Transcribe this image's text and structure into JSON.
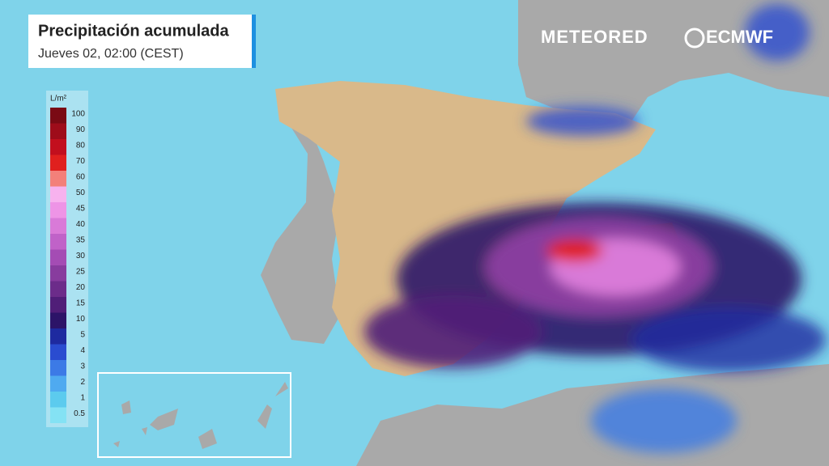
{
  "header": {
    "title": "Precipitación acumulada",
    "subtitle": "Jueves 02, 02:00 (CEST)"
  },
  "logos": {
    "brand": "METEORED",
    "model": "ECMWF"
  },
  "legend": {
    "unit": "L/m²",
    "levels": [
      {
        "value": 100,
        "color": "#7a0a14"
      },
      {
        "value": 90,
        "color": "#9e0c1a"
      },
      {
        "value": 80,
        "color": "#c20f1e"
      },
      {
        "value": 70,
        "color": "#e0201e"
      },
      {
        "value": 60,
        "color": "#f3807a"
      },
      {
        "value": 50,
        "color": "#f7b2ee"
      },
      {
        "value": 45,
        "color": "#ee94e6"
      },
      {
        "value": 40,
        "color": "#d97ad8"
      },
      {
        "value": 35,
        "color": "#c062c8"
      },
      {
        "value": 30,
        "color": "#a44cb4"
      },
      {
        "value": 25,
        "color": "#883c9e"
      },
      {
        "value": 20,
        "color": "#6c2c8a"
      },
      {
        "value": 15,
        "color": "#501e78"
      },
      {
        "value": 10,
        "color": "#2c1468"
      },
      {
        "value": 5,
        "color": "#1e2aa0"
      },
      {
        "value": 4,
        "color": "#2a4cd0"
      },
      {
        "value": 3,
        "color": "#3c7ae6"
      },
      {
        "value": 2,
        "color": "#4faaf0"
      },
      {
        "value": 1,
        "color": "#5ccbee"
      },
      {
        "value": 0.5,
        "color": "#84e2f4"
      }
    ]
  }
}
